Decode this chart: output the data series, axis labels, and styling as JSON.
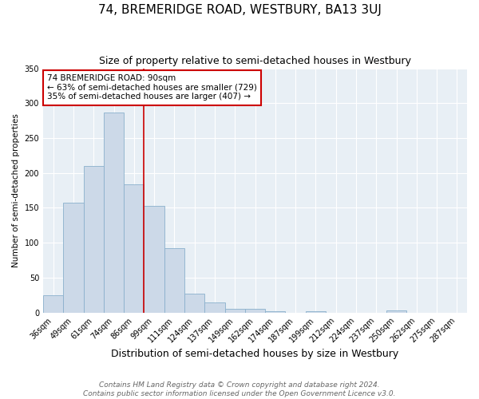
{
  "title": "74, BREMERIDGE ROAD, WESTBURY, BA13 3UJ",
  "subtitle": "Size of property relative to semi-detached houses in Westbury",
  "xlabel": "Distribution of semi-detached houses by size in Westbury",
  "ylabel": "Number of semi-detached properties",
  "bin_labels": [
    "36sqm",
    "49sqm",
    "61sqm",
    "74sqm",
    "86sqm",
    "99sqm",
    "111sqm",
    "124sqm",
    "137sqm",
    "149sqm",
    "162sqm",
    "174sqm",
    "187sqm",
    "199sqm",
    "212sqm",
    "224sqm",
    "237sqm",
    "250sqm",
    "262sqm",
    "275sqm",
    "287sqm"
  ],
  "bar_heights": [
    25,
    157,
    210,
    287,
    184,
    153,
    92,
    27,
    14,
    5,
    5,
    2,
    0,
    2,
    0,
    0,
    0,
    3,
    0,
    0,
    0
  ],
  "bar_color": "#ccd9e8",
  "bar_edge_color": "#8ab0cc",
  "vline_index": 4,
  "annotation_text": "74 BREMERIDGE ROAD: 90sqm\n← 63% of semi-detached houses are smaller (729)\n35% of semi-detached houses are larger (407) →",
  "annotation_box_color": "#ffffff",
  "annotation_box_edge_color": "#cc0000",
  "vline_color": "#cc0000",
  "ylim": [
    0,
    350
  ],
  "yticks": [
    0,
    50,
    100,
    150,
    200,
    250,
    300,
    350
  ],
  "plot_bg_color": "#e8eff5",
  "grid_color": "#ffffff",
  "footer_text": "Contains HM Land Registry data © Crown copyright and database right 2024.\nContains public sector information licensed under the Open Government Licence v3.0.",
  "title_fontsize": 11,
  "subtitle_fontsize": 9,
  "xlabel_fontsize": 9,
  "ylabel_fontsize": 7.5,
  "tick_fontsize": 7,
  "annotation_fontsize": 7.5,
  "footer_fontsize": 6.5
}
